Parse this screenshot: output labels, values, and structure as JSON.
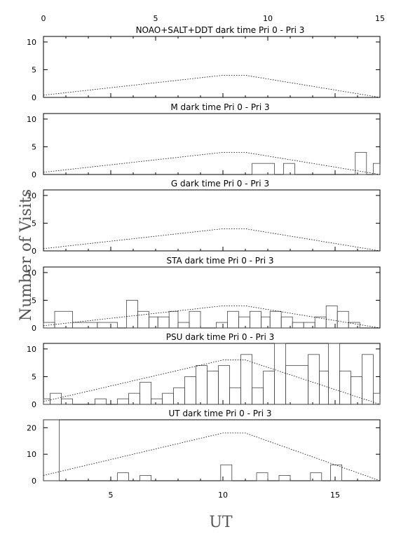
{
  "figure": {
    "xlabel": "UT",
    "ylabel": "Number of Visits",
    "top_axis_ticks": [
      "0",
      "5",
      "10",
      "15"
    ]
  },
  "chart_data": [
    {
      "type": "histogram",
      "title": "NOAO+SALT+DDT dark time Pri 0 - Pri 3",
      "xlim": [
        2,
        17
      ],
      "ylim": [
        0,
        11
      ],
      "yticks": [
        0,
        5,
        10
      ],
      "bins": [],
      "envelope": [
        [
          2,
          0.4
        ],
        [
          10,
          4
        ],
        [
          11,
          4
        ],
        [
          17,
          0
        ]
      ]
    },
    {
      "type": "histogram",
      "title": "M    dark time Pri 0 - Pri 3",
      "xlim": [
        2,
        17
      ],
      "ylim": [
        0,
        11
      ],
      "yticks": [
        0,
        5,
        10
      ],
      "bins": [
        [
          11.3,
          12.3,
          2
        ],
        [
          12.7,
          13.2,
          2
        ],
        [
          15.9,
          16.4,
          4
        ],
        [
          16.7,
          17,
          2
        ]
      ],
      "envelope": [
        [
          2,
          0.4
        ],
        [
          10,
          4
        ],
        [
          11,
          4
        ],
        [
          17,
          0
        ]
      ]
    },
    {
      "type": "histogram",
      "title": "G    dark time Pri 0 - Pri 3",
      "xlim": [
        2,
        17
      ],
      "ylim": [
        0,
        11
      ],
      "yticks": [
        0,
        5,
        10
      ],
      "bins": [],
      "envelope": [
        [
          2,
          0.4
        ],
        [
          10,
          4
        ],
        [
          11,
          4
        ],
        [
          17,
          0
        ]
      ]
    },
    {
      "type": "histogram",
      "title": "STA    dark time Pri 0 - Pri 3",
      "xlim": [
        2,
        17
      ],
      "ylim": [
        0,
        11
      ],
      "yticks": [
        0,
        5,
        10
      ],
      "bins": [
        [
          2,
          2.5,
          1
        ],
        [
          2.5,
          3.3,
          3
        ],
        [
          3.3,
          4.4,
          1
        ],
        [
          4.4,
          5.3,
          1
        ],
        [
          5.7,
          6.2,
          5
        ],
        [
          6.2,
          6.7,
          3
        ],
        [
          6.7,
          7.1,
          2
        ],
        [
          7.1,
          7.6,
          2
        ],
        [
          7.6,
          8.0,
          3
        ],
        [
          8.0,
          8.5,
          1
        ],
        [
          8.5,
          9.0,
          3
        ],
        [
          9.7,
          10.2,
          1
        ],
        [
          10.2,
          10.7,
          3
        ],
        [
          10.7,
          11.2,
          2
        ],
        [
          11.2,
          11.7,
          3
        ],
        [
          11.7,
          12.1,
          2
        ],
        [
          12.1,
          12.6,
          3
        ],
        [
          12.6,
          13.1,
          2
        ],
        [
          13.1,
          13.6,
          1
        ],
        [
          13.6,
          14.1,
          1
        ],
        [
          14.1,
          14.6,
          2
        ],
        [
          14.6,
          15.1,
          4
        ],
        [
          15.1,
          15.6,
          3
        ],
        [
          15.6,
          16.1,
          1
        ]
      ],
      "envelope": [
        [
          2,
          0.4
        ],
        [
          10,
          4
        ],
        [
          11,
          4
        ],
        [
          17,
          0
        ]
      ]
    },
    {
      "type": "histogram",
      "title": "PSU    dark time Pri 0 - Pri 3",
      "xlim": [
        2,
        17
      ],
      "ylim": [
        0,
        11
      ],
      "yticks": [
        0,
        5,
        10
      ],
      "bins": [
        [
          2,
          2.3,
          1
        ],
        [
          2.3,
          2.8,
          2
        ],
        [
          2.8,
          3.3,
          1
        ],
        [
          4.3,
          4.8,
          1
        ],
        [
          5.3,
          5.8,
          1
        ],
        [
          5.8,
          6.3,
          2
        ],
        [
          6.3,
          6.8,
          4
        ],
        [
          6.8,
          7.3,
          1
        ],
        [
          7.3,
          7.8,
          2
        ],
        [
          7.8,
          8.3,
          3
        ],
        [
          8.3,
          8.8,
          5
        ],
        [
          8.8,
          9.3,
          7
        ],
        [
          9.3,
          9.8,
          6
        ],
        [
          9.8,
          10.3,
          7
        ],
        [
          10.3,
          10.8,
          3
        ],
        [
          10.8,
          11.3,
          9
        ],
        [
          11.3,
          11.8,
          3
        ],
        [
          11.8,
          12.3,
          6
        ],
        [
          12.3,
          12.8,
          11
        ],
        [
          12.8,
          13.8,
          7
        ],
        [
          13.8,
          14.3,
          9
        ],
        [
          14.3,
          14.7,
          6
        ],
        [
          14.7,
          15.2,
          11
        ],
        [
          15.2,
          15.7,
          6
        ],
        [
          15.7,
          16.2,
          5
        ],
        [
          16.2,
          16.7,
          9
        ],
        [
          16.7,
          17,
          2
        ]
      ],
      "envelope": [
        [
          2,
          0.5
        ],
        [
          10,
          8
        ],
        [
          11,
          8
        ],
        [
          17,
          0
        ]
      ]
    },
    {
      "type": "histogram",
      "title": "UT    dark time Pri 0 - Pri 3",
      "xlim": [
        2,
        17
      ],
      "ylim": [
        0,
        23
      ],
      "yticks": [
        0,
        10,
        20
      ],
      "bins": [
        [
          2,
          2.7,
          23
        ],
        [
          5.3,
          5.8,
          3
        ],
        [
          6.3,
          6.8,
          2
        ],
        [
          9.9,
          10.4,
          6
        ],
        [
          11.5,
          12,
          3
        ],
        [
          12.5,
          13,
          2
        ],
        [
          13.9,
          14.4,
          3
        ],
        [
          14.8,
          15.3,
          6
        ]
      ],
      "envelope": [
        [
          2,
          2
        ],
        [
          10,
          18
        ],
        [
          11,
          18
        ],
        [
          17,
          0
        ]
      ]
    }
  ],
  "bottom_axis": {
    "xlim": [
      2,
      17
    ],
    "ticks": [
      5,
      10,
      15
    ]
  },
  "top_axis_values": [
    0,
    5,
    10,
    15
  ]
}
